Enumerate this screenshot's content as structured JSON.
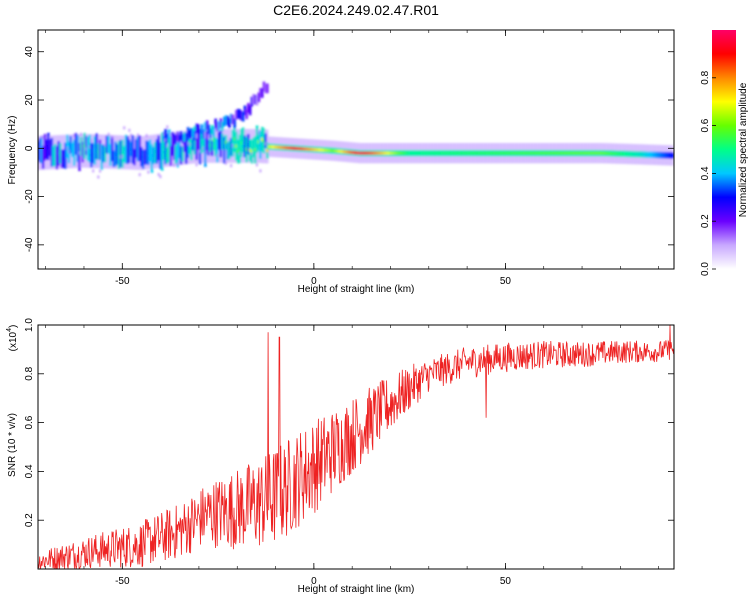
{
  "title": "C2E6.2024.249.02.47.R01",
  "chart_data": [
    {
      "type": "heatmap",
      "title": "C2E6.2024.249.02.47.R01",
      "xlabel": "Height of straight line (km)",
      "ylabel": "Frequency (Hz)",
      "xlim": [
        -72,
        94
      ],
      "ylim": [
        -50,
        49
      ],
      "xticks": [
        -50,
        0,
        50
      ],
      "yticks": [
        -40,
        -20,
        0,
        20,
        40
      ],
      "colorbar": {
        "label": "Normalized spectral amplitude",
        "range": [
          0,
          1
        ],
        "ticks": [
          "0.0",
          "0.2",
          "0.4",
          "0.6",
          "0.8"
        ],
        "colors": [
          "#ffffff",
          "#c8a8ff",
          "#6a00ff",
          "#0000ff",
          "#00c8ff",
          "#00ff88",
          "#66ff00",
          "#ffff00",
          "#ff8800",
          "#ff0000",
          "#ff0066"
        ]
      },
      "ridge": [
        {
          "height": -72,
          "freq": -2,
          "amplitude": 0.35
        },
        {
          "height": -60,
          "freq": -1,
          "amplitude": 0.4
        },
        {
          "height": -45,
          "freq": -2,
          "amplitude": 0.35
        },
        {
          "height": -30,
          "freq": 1,
          "amplitude": 0.4
        },
        {
          "height": -15,
          "freq": 1,
          "amplitude": 0.55
        },
        {
          "height": -5,
          "freq": 0,
          "amplitude": 0.9
        },
        {
          "height": 5,
          "freq": -1,
          "amplitude": 0.6
        },
        {
          "height": 12,
          "freq": -2,
          "amplitude": 0.95
        },
        {
          "height": 25,
          "freq": -2,
          "amplitude": 0.5
        },
        {
          "height": 50,
          "freq": -2,
          "amplitude": 0.55
        },
        {
          "height": 75,
          "freq": -2,
          "amplitude": 0.6
        },
        {
          "height": 85,
          "freq": -2.5,
          "amplitude": 0.45
        },
        {
          "height": 94,
          "freq": -3,
          "amplitude": 0.3
        }
      ],
      "upper_branch": [
        {
          "height": -40,
          "freq": 4,
          "amplitude": 0.35
        },
        {
          "height": -30,
          "freq": 7,
          "amplitude": 0.35
        },
        {
          "height": -22,
          "freq": 10,
          "amplitude": 0.35
        },
        {
          "height": -18,
          "freq": 15,
          "amplitude": 0.25
        },
        {
          "height": -12,
          "freq": 26,
          "amplitude": 0.15
        }
      ]
    },
    {
      "type": "line",
      "xlabel": "Height of straight line (km)",
      "ylabel": "SNR (10 * v/v)",
      "y_multiplier": "(x10",
      "y_multiplier_exp": "4",
      "y_multiplier_close": ")",
      "xlim": [
        -72,
        94
      ],
      "ylim": [
        0,
        1.0
      ],
      "xticks": [
        -50,
        0,
        50
      ],
      "yticks": [
        "0.2",
        "0.4",
        "0.6",
        "0.8",
        "1.0"
      ],
      "color": "#ee2222",
      "envelope": {
        "x": [
          -72,
          -60,
          -45,
          -35,
          -28,
          -20,
          -12,
          -8,
          -5,
          0,
          5,
          10,
          15,
          20,
          25,
          30,
          40,
          50,
          60,
          70,
          80,
          90,
          94
        ],
        "y": [
          0.04,
          0.08,
          0.12,
          0.18,
          0.25,
          0.28,
          0.32,
          0.36,
          0.4,
          0.46,
          0.52,
          0.58,
          0.64,
          0.7,
          0.76,
          0.81,
          0.86,
          0.88,
          0.89,
          0.89,
          0.9,
          0.9,
          0.91
        ]
      },
      "noise_amplitude": {
        "x": [
          -72,
          -30,
          -10,
          0,
          15,
          30,
          94
        ],
        "y": [
          0.06,
          0.18,
          0.3,
          0.28,
          0.2,
          0.1,
          0.06
        ]
      },
      "spikes": [
        {
          "x": -12,
          "y": 0.97
        },
        {
          "x": -9,
          "y": 0.95
        },
        {
          "x": 45,
          "y": 0.62
        },
        {
          "x": 93,
          "y": 1.0
        }
      ]
    }
  ]
}
